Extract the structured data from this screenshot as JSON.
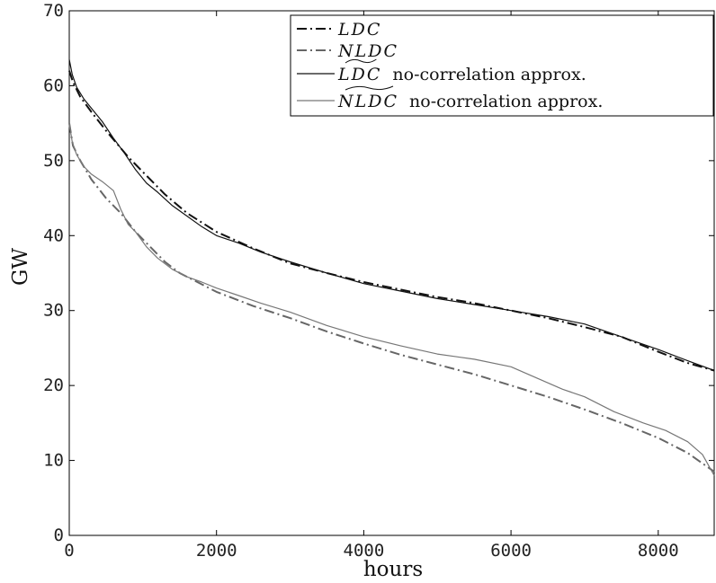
{
  "chart_data": {
    "type": "line",
    "xlabel": "hours",
    "ylabel": "GW",
    "xlim": [
      0,
      8760
    ],
    "ylim": [
      0,
      70
    ],
    "xticks": [
      0,
      2000,
      4000,
      6000,
      8000
    ],
    "yticks": [
      0,
      10,
      20,
      30,
      40,
      50,
      60,
      70
    ],
    "grid": false,
    "legend_position": "top-right",
    "series": [
      {
        "name": "LDC",
        "color": "#111111",
        "style": "dashdot",
        "x": [
          0,
          50,
          150,
          300,
          500,
          800,
          1000,
          1300,
          1600,
          2000,
          2500,
          3000,
          3500,
          4000,
          4500,
          5000,
          5500,
          6000,
          6500,
          7000,
          7500,
          8000,
          8400,
          8760
        ],
        "y": [
          62,
          60.5,
          58.5,
          56.5,
          54,
          50.5,
          48.5,
          45.5,
          43,
          40.5,
          38.3,
          36.3,
          35,
          33.8,
          32.8,
          31.8,
          31,
          30,
          29,
          27.8,
          26.5,
          24.5,
          23,
          22
        ]
      },
      {
        "name": "NLDC",
        "color": "#666666",
        "style": "dashdot",
        "x": [
          0,
          50,
          150,
          300,
          500,
          700,
          900,
          1100,
          1300,
          1500,
          1800,
          2000,
          2500,
          3000,
          3500,
          4000,
          4500,
          5000,
          5500,
          6000,
          6500,
          7000,
          7500,
          8000,
          8400,
          8760
        ],
        "y": [
          55,
          52,
          50,
          47.5,
          45,
          43,
          40.5,
          38.5,
          36.5,
          35,
          33.5,
          32.5,
          30.6,
          29,
          27.2,
          25.6,
          24.1,
          22.8,
          21.5,
          20,
          18.5,
          16.8,
          15,
          13,
          11,
          8.5
        ]
      },
      {
        "name": "LDC no-correlation approx.",
        "color": "#111111",
        "style": "solid",
        "x": [
          0,
          40,
          100,
          200,
          300,
          450,
          600,
          750,
          900,
          1050,
          1200,
          1400,
          1600,
          1800,
          2000,
          2300,
          2600,
          3000,
          3500,
          4000,
          4500,
          5000,
          5500,
          6000,
          6500,
          7000,
          7500,
          8000,
          8400,
          8760
        ],
        "y": [
          63.5,
          61.5,
          59.8,
          58.2,
          57,
          55.2,
          53,
          51,
          48.8,
          47,
          45.8,
          44,
          42.6,
          41.2,
          40,
          39,
          37.8,
          36.5,
          35,
          33.6,
          32.6,
          31.6,
          30.8,
          30,
          29.2,
          28.2,
          26.5,
          24.8,
          23.3,
          22
        ]
      },
      {
        "name": "NLDC no-correlation approx.",
        "color": "#777777",
        "style": "solid",
        "x": [
          0,
          40,
          100,
          200,
          300,
          450,
          600,
          700,
          800,
          900,
          1050,
          1200,
          1400,
          1600,
          1800,
          2000,
          2300,
          2600,
          3000,
          3500,
          4000,
          4500,
          5000,
          5500,
          6000,
          6300,
          6700,
          7000,
          7400,
          7800,
          8100,
          8400,
          8600,
          8760
        ],
        "y": [
          55,
          52.5,
          50.8,
          49.2,
          48.2,
          47.2,
          46,
          43.5,
          41.5,
          40.5,
          38.5,
          37,
          35.5,
          34.5,
          33.8,
          33,
          32,
          31,
          29.8,
          28,
          26.5,
          25.3,
          24.2,
          23.5,
          22.5,
          21.2,
          19.5,
          18.5,
          16.5,
          15,
          14,
          12.5,
          10.8,
          8
        ]
      }
    ]
  }
}
